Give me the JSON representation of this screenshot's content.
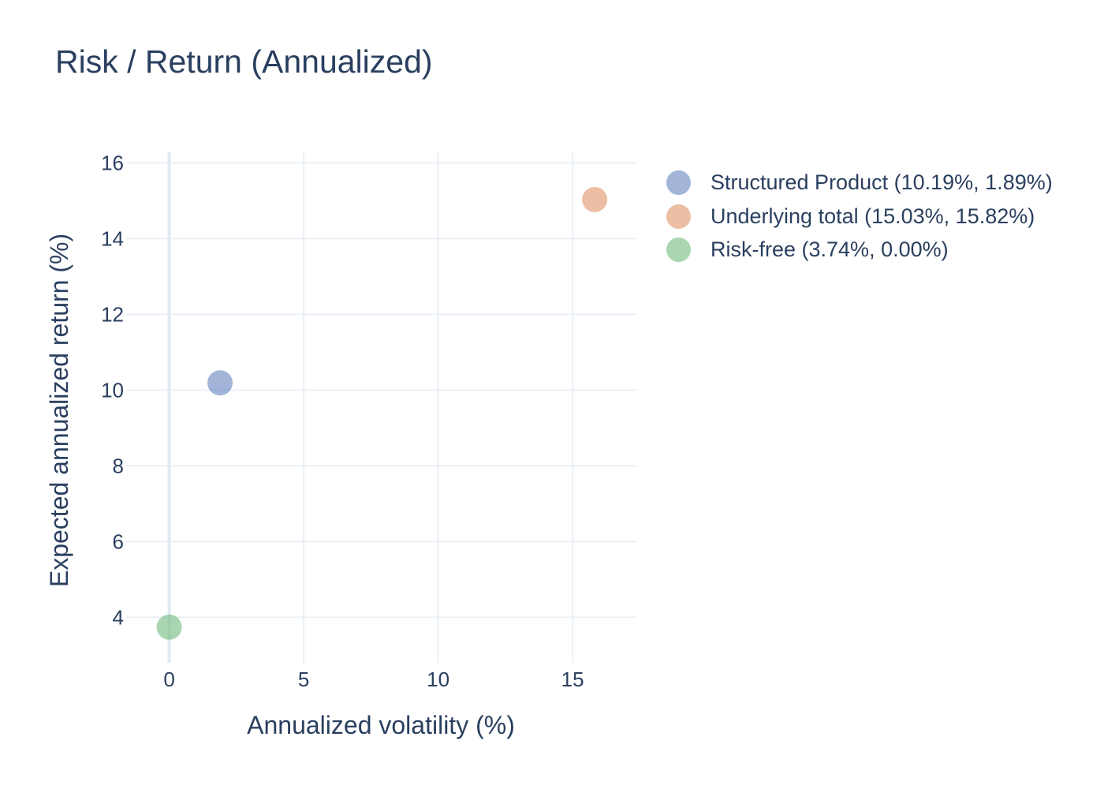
{
  "chart_data": {
    "type": "scatter",
    "title": "Risk / Return (Annualized)",
    "xlabel": "Annualized volatility (%)",
    "ylabel": "Expected annualized return (%)",
    "xlim": [
      -1.6,
      17.4
    ],
    "ylim": [
      2.8,
      16.3
    ],
    "x_ticks": [
      0,
      5,
      10,
      15
    ],
    "y_ticks": [
      4,
      6,
      8,
      10,
      12,
      14,
      16
    ],
    "grid": true,
    "legend_position": "right",
    "series": [
      {
        "name": "Structured Product (10.19%, 1.89%)",
        "x": [
          1.89
        ],
        "y": [
          10.19
        ],
        "color": "#6482be"
      },
      {
        "name": "Underlying total (15.03%, 15.82%)",
        "x": [
          15.82
        ],
        "y": [
          15.03
        ],
        "color": "#e09467"
      },
      {
        "name": "Risk-free (3.74%, 0.00%)",
        "x": [
          0.0
        ],
        "y": [
          3.74
        ],
        "color": "#6fba7d"
      }
    ]
  }
}
